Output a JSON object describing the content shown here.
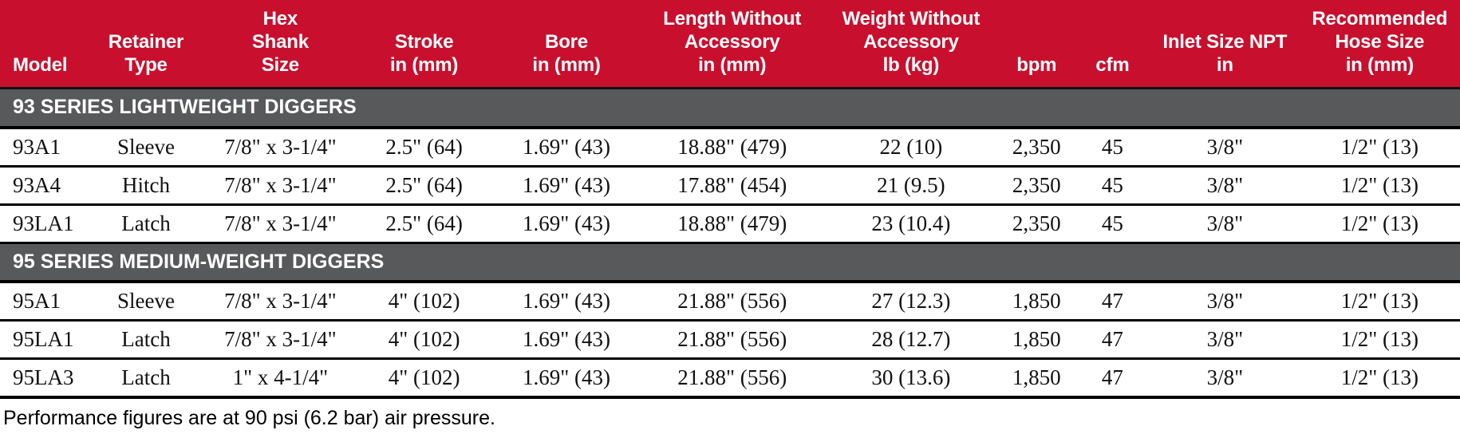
{
  "colors": {
    "header_red": "#C8102E",
    "section_gray": "#58595B",
    "row_border_black": "#000000",
    "header_text": "#ffffff",
    "body_text": "#111111"
  },
  "table": {
    "columns": [
      {
        "id": "model",
        "label": "Model"
      },
      {
        "id": "retainer",
        "label": "Retainer\nType"
      },
      {
        "id": "hex",
        "label": "Hex\nShank\nSize"
      },
      {
        "id": "stroke",
        "label": "Stroke\nin (mm)"
      },
      {
        "id": "bore",
        "label": "Bore\nin (mm)"
      },
      {
        "id": "length",
        "label": "Length Without\nAccessory\nin (mm)"
      },
      {
        "id": "weight",
        "label": "Weight Without\nAccessory\nlb (kg)"
      },
      {
        "id": "bpm",
        "label": "bpm"
      },
      {
        "id": "cfm",
        "label": "cfm"
      },
      {
        "id": "inlet",
        "label": "Inlet Size NPT\nin"
      },
      {
        "id": "hose",
        "label": "Recommended\nHose Size\nin (mm)"
      }
    ],
    "sections": [
      {
        "title": "93 SERIES LIGHTWEIGHT DIGGERS",
        "rows": [
          [
            "93A1",
            "Sleeve",
            "7/8\" x 3-1/4\"",
            "2.5\" (64)",
            "1.69\" (43)",
            "18.88\" (479)",
            "22 (10)",
            "2,350",
            "45",
            "3/8\"",
            "1/2\" (13)"
          ],
          [
            "93A4",
            "Hitch",
            "7/8\" x 3-1/4\"",
            "2.5\" (64)",
            "1.69\" (43)",
            "17.88\" (454)",
            "21 (9.5)",
            "2,350",
            "45",
            "3/8\"",
            "1/2\" (13)"
          ],
          [
            "93LA1",
            "Latch",
            "7/8\" x 3-1/4\"",
            "2.5\" (64)",
            "1.69\" (43)",
            "18.88\" (479)",
            "23 (10.4)",
            "2,350",
            "45",
            "3/8\"",
            "1/2\" (13)"
          ]
        ]
      },
      {
        "title": "95 SERIES MEDIUM-WEIGHT DIGGERS",
        "rows": [
          [
            "95A1",
            "Sleeve",
            "7/8\" x 3-1/4\"",
            "4\" (102)",
            "1.69\" (43)",
            "21.88\" (556)",
            "27 (12.3)",
            "1,850",
            "47",
            "3/8\"",
            "1/2\" (13)"
          ],
          [
            "95LA1",
            "Latch",
            "7/8\" x 3-1/4\"",
            "4\" (102)",
            "1.69\" (43)",
            "21.88\" (556)",
            "28 (12.7)",
            "1,850",
            "47",
            "3/8\"",
            "1/2\" (13)"
          ],
          [
            "95LA3",
            "Latch",
            "1\" x 4-1/4\"",
            "4\" (102)",
            "1.69\" (43)",
            "21.88\" (556)",
            "30 (13.6)",
            "1,850",
            "47",
            "3/8\"",
            "1/2\" (13)"
          ]
        ]
      }
    ],
    "footnote": "Performance figures are at 90 psi (6.2 bar) air pressure."
  }
}
